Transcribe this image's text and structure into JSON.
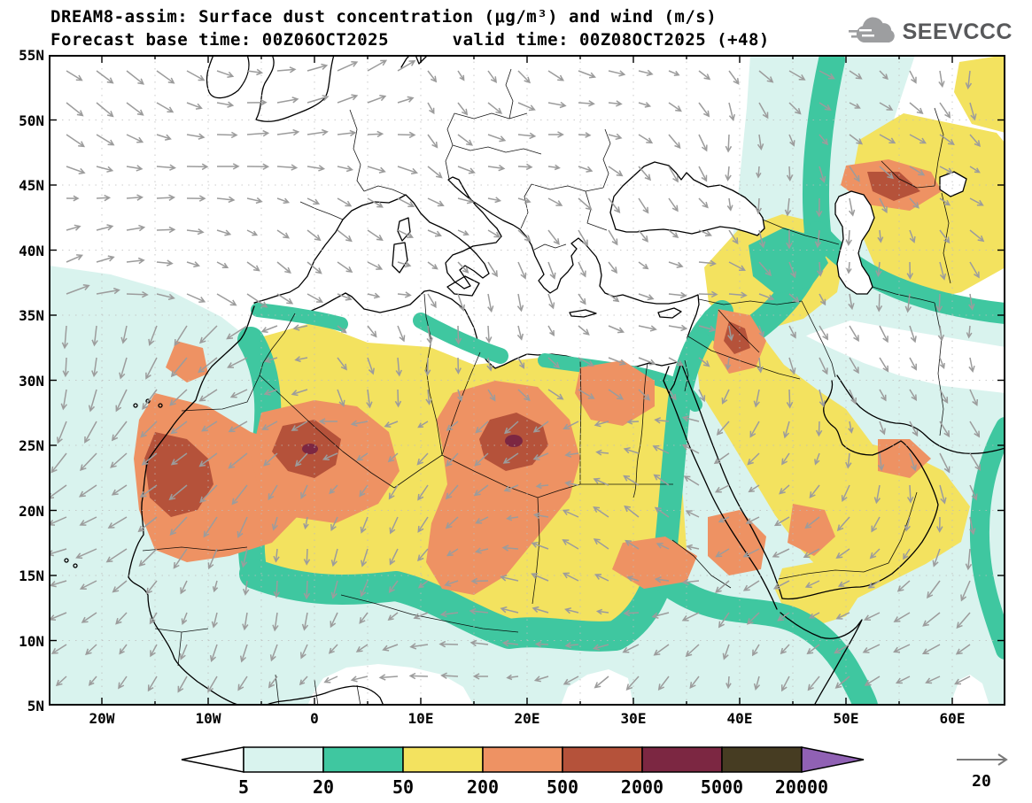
{
  "header": {
    "title_line1": "DREAM8-assim: Surface dust concentration (μg/m³) and wind (m/s)",
    "title_line2": "Forecast base time: 00Z06OCT2025      valid time: 00Z08OCT2025 (+48)",
    "logo_text": "SEEVCCC"
  },
  "map": {
    "lat_labels": [
      "55N",
      "50N",
      "45N",
      "40N",
      "35N",
      "30N",
      "25N",
      "20N",
      "15N",
      "10N",
      "5N"
    ],
    "lon_labels": [
      "20W",
      "10W",
      "0",
      "10E",
      "20E",
      "30E",
      "40E",
      "50E",
      "60E"
    ]
  },
  "colorbar": {
    "boundary_labels": [
      "5",
      "20",
      "50",
      "200",
      "500",
      "2000",
      "5000",
      "20000"
    ],
    "segment_colors": [
      "#ffffff",
      "#d9f3ee",
      "#3fc7a0",
      "#f3e25f",
      "#ee9263",
      "#b5523a",
      "#7c2742",
      "#463c22",
      "#9061b4"
    ]
  },
  "wind_legend": {
    "value": "20"
  },
  "colors": {
    "dust_5_20": "#d9f3ee",
    "dust_20_50": "#3fc7a0",
    "dust_50_200": "#f3e25f",
    "dust_200_500": "#ee9263",
    "dust_500_2000": "#b5523a",
    "dust_2000_5000": "#7c2742",
    "sea_fill": "#ffffff",
    "coastline": "#000000",
    "wind_arrow": "#9c9c9c",
    "grid_dots": "#bcbcbc",
    "logo_gray": "#58595b"
  },
  "chart_data": {
    "type": "heatmap",
    "title": "DREAM8-assim: Surface dust concentration (μg/m³) and wind (m/s)",
    "units": "μg/m³",
    "levels": [
      5,
      20,
      50,
      200,
      500,
      2000,
      5000,
      20000
    ],
    "lon_range": [
      "25W",
      "65E"
    ],
    "lat_range": [
      "5N",
      "55N"
    ],
    "wind_reference_ms": 20,
    "max_regions": [
      "Mauritania coast ~(14W,23N): 500-2000",
      "S Algeria / N Mali ~(0E,25N): 500-2000",
      "SE Libya / NW Chad ~(19E,26N): 500-2000",
      "Syria-Iraq ~(40E,34N): 500-2000",
      "N Caspian / Aral region ~(53E,45N): 500-2000"
    ]
  }
}
